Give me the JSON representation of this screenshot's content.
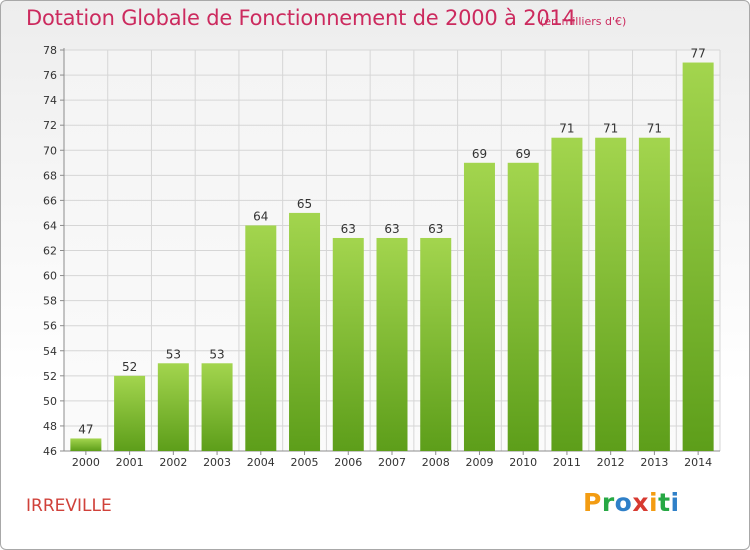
{
  "header": {
    "title": "Dotation Globale de Fonctionnement de 2000 à 2014",
    "subtitle": "(en milliers d'€)"
  },
  "footer": {
    "commune": "IRREVILLE",
    "logo_text": "Proxiti"
  },
  "colors": {
    "title": "#cc2a5e",
    "commune": "#d0413a",
    "bar_top": "#a3d54e",
    "bar_bottom": "#5d9e1a",
    "grid": "#d6d6d6",
    "axis": "#8c8c8c",
    "logo": [
      "#f39c12",
      "#27a844",
      "#2f80c8",
      "#d73a31",
      "#f39c12",
      "#27a844",
      "#2f80c8"
    ]
  },
  "chart_data": {
    "type": "bar",
    "categories": [
      "2000",
      "2001",
      "2002",
      "2003",
      "2004",
      "2005",
      "2006",
      "2007",
      "2008",
      "2009",
      "2010",
      "2011",
      "2012",
      "2013",
      "2014"
    ],
    "values": [
      47,
      52,
      53,
      53,
      64,
      65,
      63,
      63,
      63,
      69,
      69,
      71,
      71,
      71,
      77
    ],
    "yticks": [
      46,
      48,
      50,
      52,
      54,
      56,
      58,
      60,
      62,
      64,
      66,
      68,
      70,
      72,
      74,
      76,
      78
    ],
    "ylim": [
      46,
      78
    ],
    "grid": true
  }
}
